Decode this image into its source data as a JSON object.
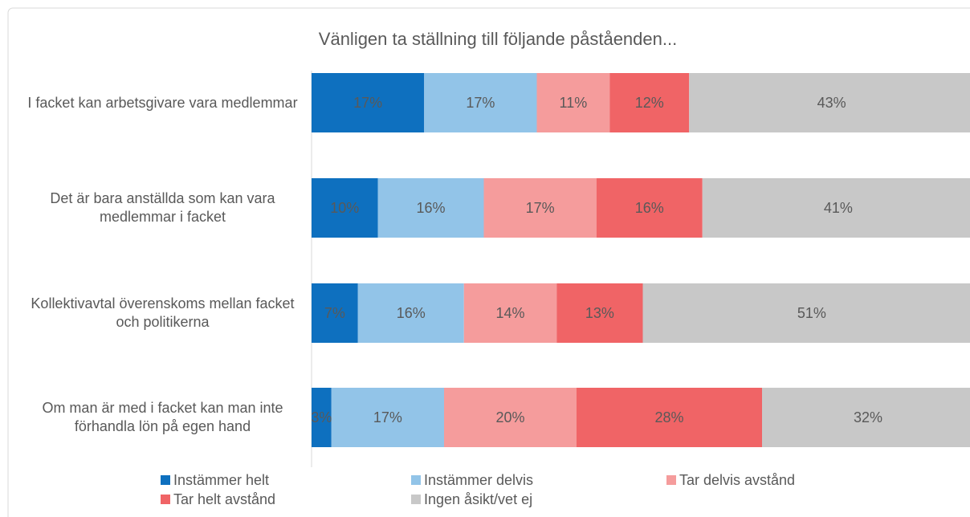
{
  "chart_data": {
    "type": "stacked-bar-horizontal",
    "title": "Vänligen ta ställning till följande påståenden...",
    "categories": [
      "I facket kan arbetsgivare vara medlemmar",
      "Det är bara anställda som kan vara medlemmar i facket",
      "Kollektivavtal överenskoms mellan facket och politikerna",
      "Om man är med i facket kan man inte förhandla lön på egen hand"
    ],
    "series": [
      {
        "name": "Instämmer helt",
        "color": "#0e70bf",
        "values": [
          17,
          10,
          7,
          3
        ],
        "value_labels": [
          "17%",
          "10%",
          "7%",
          "3%"
        ]
      },
      {
        "name": "Instämmer delvis",
        "color": "#92c4e8",
        "values": [
          17,
          16,
          16,
          17
        ],
        "value_labels": [
          "17%",
          "16%",
          "16%",
          "17%"
        ]
      },
      {
        "name": "Tar delvis avstånd",
        "color": "#f59c9c",
        "values": [
          11,
          17,
          14,
          20
        ],
        "value_labels": [
          "11%",
          "17%",
          "14%",
          "20%"
        ]
      },
      {
        "name": "Tar helt avstånd",
        "color": "#f06466",
        "values": [
          12,
          16,
          13,
          28
        ],
        "value_labels": [
          "12%",
          "16%",
          "13%",
          "28%"
        ]
      },
      {
        "name": "Ingen åsikt/vet ej",
        "color": "#c8c8c8",
        "values": [
          43,
          41,
          51,
          32
        ],
        "value_labels": [
          "43%",
          "41%",
          "51%",
          "32%"
        ]
      }
    ],
    "legend": "bottom"
  }
}
